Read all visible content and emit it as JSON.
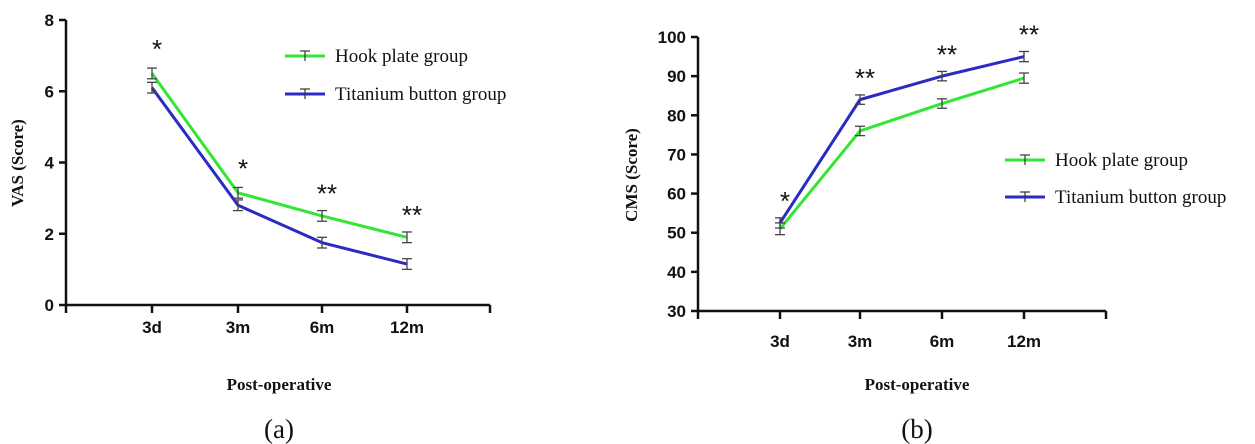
{
  "chart_data": [
    {
      "type": "line",
      "panel_label": "(a)",
      "xlabel": "Post-operative",
      "ylabel": "VAS (Score)",
      "categories": [
        "3d",
        "3m",
        "6m",
        "12m"
      ],
      "ylim": [
        0,
        8
      ],
      "yticks": [
        "0",
        "2",
        "4",
        "6",
        "8"
      ],
      "grid": false,
      "legend_position": "top-right",
      "series": [
        {
          "name": "Hook plate group",
          "color": "#33e633",
          "values": [
            6.5,
            3.15,
            2.5,
            1.9
          ],
          "errors": [
            0.15,
            0.15,
            0.15,
            0.15
          ]
        },
        {
          "name": "Titanium button group",
          "color": "#2a2ac4",
          "values": [
            6.1,
            2.8,
            1.75,
            1.15
          ],
          "errors": [
            0.15,
            0.15,
            0.15,
            0.15
          ]
        }
      ],
      "significance": [
        "*",
        "*",
        "**",
        "**"
      ]
    },
    {
      "type": "line",
      "panel_label": "(b)",
      "xlabel": "Post-operative",
      "ylabel": "CMS (Score)",
      "categories": [
        "3d",
        "3m",
        "6m",
        "12m"
      ],
      "ylim": [
        30,
        100
      ],
      "yticks": [
        "30",
        "40",
        "50",
        "60",
        "70",
        "80",
        "90",
        "100"
      ],
      "grid": false,
      "legend_position": "right",
      "series": [
        {
          "name": "Hook plate group",
          "color": "#33e633",
          "values": [
            51,
            76,
            83,
            89.5
          ],
          "errors": [
            1.5,
            1.2,
            1.2,
            1.3
          ]
        },
        {
          "name": "Titanium button group",
          "color": "#2a2ac4",
          "values": [
            52.5,
            84,
            90,
            95
          ],
          "errors": [
            1.3,
            1.2,
            1.2,
            1.3
          ]
        }
      ],
      "significance": [
        "*",
        "**",
        "**",
        "**"
      ]
    }
  ]
}
